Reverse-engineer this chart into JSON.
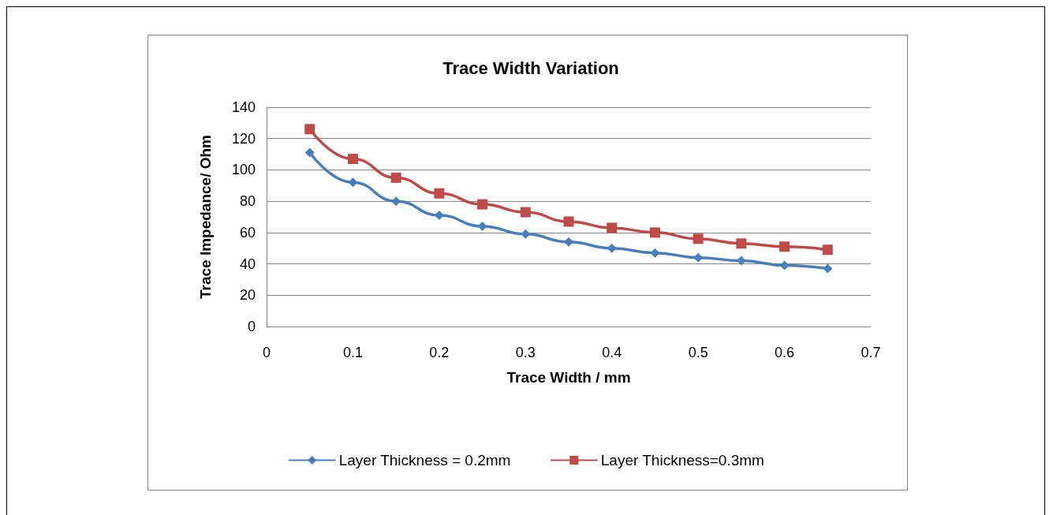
{
  "chart_data": {
    "type": "line",
    "title": "Trace Width Variation",
    "xlabel": "Trace Width / mm",
    "ylabel": "Trace Impedance/ Ohm",
    "x": [
      0.05,
      0.1,
      0.15,
      0.2,
      0.25,
      0.3,
      0.35,
      0.4,
      0.45,
      0.5,
      0.55,
      0.6,
      0.65
    ],
    "series": [
      {
        "name": "Layer Thickness = 0.2mm",
        "color": "#4a7ebb",
        "marker": "diamond",
        "values": [
          111,
          92,
          80,
          71,
          64,
          59,
          54,
          50,
          47,
          44,
          42,
          39,
          37
        ]
      },
      {
        "name": "Layer Thickness=0.3mm",
        "color": "#be4b48",
        "marker": "square",
        "values": [
          126,
          107,
          95,
          85,
          78,
          73,
          67,
          63,
          60,
          56,
          53,
          51,
          49
        ]
      }
    ],
    "xlim": [
      0,
      0.7
    ],
    "xticks": [
      0,
      0.1,
      0.2,
      0.3,
      0.4,
      0.5,
      0.6,
      0.7
    ],
    "ylim": [
      0,
      140
    ],
    "yticks": [
      0,
      20,
      40,
      60,
      80,
      100,
      120,
      140
    ],
    "grid": "y",
    "legend": "bottom",
    "line_style": "solid"
  }
}
